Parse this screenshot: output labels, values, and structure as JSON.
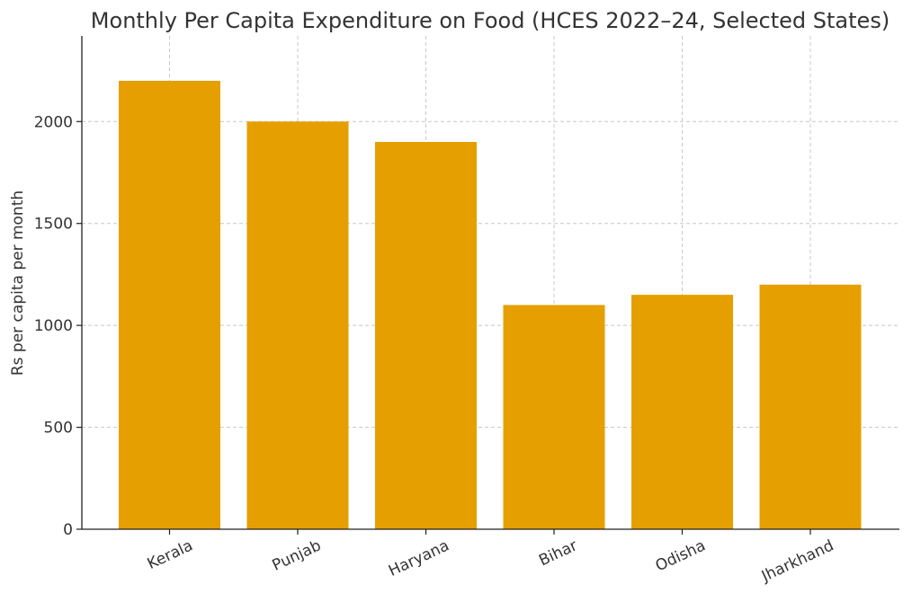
{
  "chart_data": {
    "type": "bar",
    "title": "Monthly Per Capita Expenditure on Food (HCES 2022–24, Selected States)",
    "xlabel": "",
    "ylabel": "Rs per capita per month",
    "categories": [
      "Kerala",
      "Punjab",
      "Haryana",
      "Bihar",
      "Odisha",
      "Jharkhand"
    ],
    "values": [
      2200,
      2000,
      1900,
      1100,
      1150,
      1200
    ],
    "ylim": [
      0,
      2420
    ],
    "yticks": [
      0,
      500,
      1000,
      1500,
      2000
    ],
    "ytick_labels": [
      "0",
      "500",
      "1000",
      "1500",
      "2000"
    ],
    "bar_color": "#e69f00",
    "grid": true,
    "legend": "none"
  }
}
